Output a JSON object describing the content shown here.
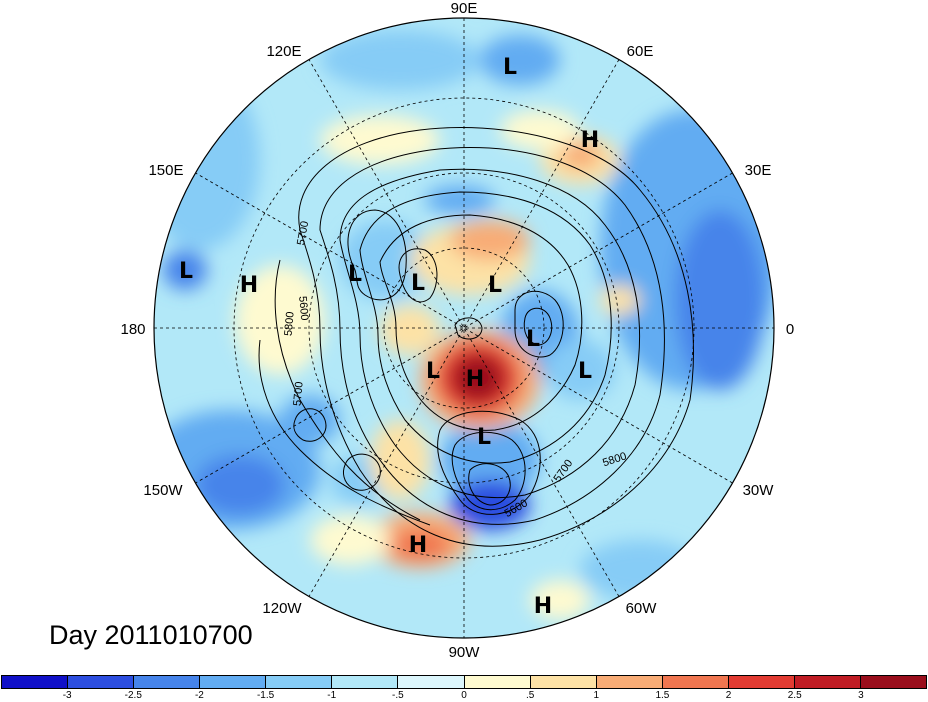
{
  "title": "Day 2011010700",
  "longitude_labels": [
    {
      "text": "90E",
      "deg": 90
    },
    {
      "text": "60E",
      "deg": 60
    },
    {
      "text": "30E",
      "deg": 30
    },
    {
      "text": "0",
      "deg": 0
    },
    {
      "text": "30W",
      "deg": -30
    },
    {
      "text": "60W",
      "deg": -60
    },
    {
      "text": "90W",
      "deg": -90
    },
    {
      "text": "120W",
      "deg": -120
    },
    {
      "text": "150W",
      "deg": -150
    },
    {
      "text": "180",
      "deg": 180
    },
    {
      "text": "150E",
      "deg": 150
    },
    {
      "text": "120E",
      "deg": 120
    }
  ],
  "pressure_centers": [
    {
      "label": "L"
    },
    {
      "label": "H"
    },
    {
      "label": "L"
    },
    {
      "label": "L"
    },
    {
      "label": "L"
    },
    {
      "label": "L"
    },
    {
      "label": "L"
    },
    {
      "label": "L"
    },
    {
      "label": "H"
    },
    {
      "label": "L"
    },
    {
      "label": "H"
    },
    {
      "label": "H"
    },
    {
      "label": "L"
    },
    {
      "label": "H"
    }
  ],
  "contour_labels": [
    "5700",
    "5800",
    "5600",
    "5700",
    "5800",
    "5700",
    "5600"
  ],
  "colorbar": {
    "colors": [
      "#1010c8",
      "#2c4ee0",
      "#4684ea",
      "#62acf2",
      "#86ccf6",
      "#b2e8f8",
      "#dcf6fc",
      "#fefad0",
      "#fde2a6",
      "#f8ac76",
      "#f07650",
      "#e23b32",
      "#c01c24",
      "#9a0e1c"
    ],
    "ticks": [
      "-3",
      "-2.5",
      "-2",
      "-1.5",
      "-1",
      "-.5",
      "0",
      ".5",
      "1",
      "1.5",
      "2",
      "2.5",
      "3"
    ]
  }
}
